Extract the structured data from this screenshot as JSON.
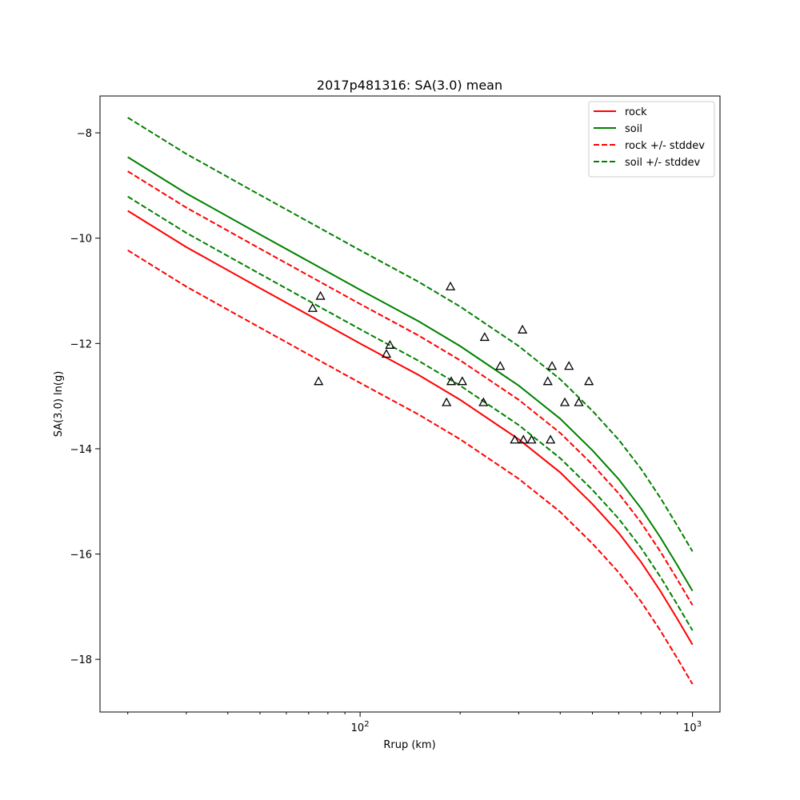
{
  "chart_data": {
    "type": "line",
    "title": "2017p481316: SA(3.0) mean",
    "xlabel": "Rrup (km)",
    "ylabel": "SA(3.0) ln(g)",
    "xscale": "log",
    "xlim": [
      16.5,
      1210
    ],
    "ylim": [
      -19.0,
      -7.3
    ],
    "xticks": [
      100,
      1000
    ],
    "xtick_labels": [
      "10^2",
      "10^3"
    ],
    "yticks": [
      -18,
      -16,
      -14,
      -12,
      -10,
      -8
    ],
    "ytick_labels": [
      "−18",
      "−16",
      "−14",
      "−12",
      "−10",
      "−8"
    ],
    "grid": false,
    "legend_position": "top-right",
    "x": [
      20,
      30,
      50,
      70,
      100,
      150,
      200,
      300,
      400,
      500,
      600,
      700,
      800,
      900,
      1000
    ],
    "series": [
      {
        "name": "rock",
        "color": "#ff0000",
        "style": "solid",
        "values": [
          -9.48,
          -10.17,
          -10.95,
          -11.46,
          -12.0,
          -12.6,
          -13.07,
          -13.82,
          -14.45,
          -15.05,
          -15.6,
          -16.15,
          -16.7,
          -17.23,
          -17.72
        ]
      },
      {
        "name": "soil",
        "color": "#008000",
        "style": "solid",
        "values": [
          -8.46,
          -9.15,
          -9.93,
          -10.44,
          -10.98,
          -11.58,
          -12.05,
          -12.8,
          -13.43,
          -14.03,
          -14.58,
          -15.13,
          -15.68,
          -16.21,
          -16.7
        ]
      },
      {
        "name": "rock +/- stddev",
        "color": "#ff0000",
        "style": "dashed",
        "values": [
          -8.73,
          -9.42,
          -10.2,
          -10.71,
          -11.25,
          -11.85,
          -12.32,
          -13.07,
          -13.7,
          -14.3,
          -14.85,
          -15.4,
          -15.95,
          -16.48,
          -16.97
        ]
      },
      {
        "name": "",
        "color": "#ff0000",
        "style": "dashed",
        "values": [
          -10.23,
          -10.92,
          -11.7,
          -12.21,
          -12.75,
          -13.35,
          -13.82,
          -14.57,
          -15.2,
          -15.8,
          -16.35,
          -16.9,
          -17.45,
          -17.98,
          -18.47
        ]
      },
      {
        "name": "soil +/- stddev",
        "color": "#008000",
        "style": "dashed",
        "values": [
          -7.71,
          -8.4,
          -9.18,
          -9.69,
          -10.23,
          -10.83,
          -11.3,
          -12.05,
          -12.68,
          -13.28,
          -13.83,
          -14.38,
          -14.93,
          -15.46,
          -15.95
        ]
      },
      {
        "name": "",
        "color": "#008000",
        "style": "dashed",
        "values": [
          -9.21,
          -9.9,
          -10.68,
          -11.19,
          -11.73,
          -12.33,
          -12.8,
          -13.55,
          -14.18,
          -14.78,
          -15.33,
          -15.88,
          -16.43,
          -16.96,
          -17.45
        ]
      }
    ],
    "observations": {
      "marker": "open-triangle",
      "color": "#000000",
      "points": [
        {
          "x": 72,
          "y": -11.33
        },
        {
          "x": 76,
          "y": -11.1
        },
        {
          "x": 75,
          "y": -12.72
        },
        {
          "x": 120,
          "y": -12.2
        },
        {
          "x": 123,
          "y": -12.03
        },
        {
          "x": 182,
          "y": -13.12
        },
        {
          "x": 187,
          "y": -10.92
        },
        {
          "x": 188,
          "y": -12.72
        },
        {
          "x": 203,
          "y": -12.72
        },
        {
          "x": 235,
          "y": -13.12
        },
        {
          "x": 237,
          "y": -11.88
        },
        {
          "x": 264,
          "y": -12.43
        },
        {
          "x": 292,
          "y": -13.83
        },
        {
          "x": 308,
          "y": -11.74
        },
        {
          "x": 310,
          "y": -13.83
        },
        {
          "x": 328,
          "y": -13.83
        },
        {
          "x": 367,
          "y": -12.72
        },
        {
          "x": 374,
          "y": -13.83
        },
        {
          "x": 378,
          "y": -12.43
        },
        {
          "x": 413,
          "y": -13.12
        },
        {
          "x": 425,
          "y": -12.43
        },
        {
          "x": 455,
          "y": -13.12
        },
        {
          "x": 488,
          "y": -12.72
        }
      ]
    }
  }
}
